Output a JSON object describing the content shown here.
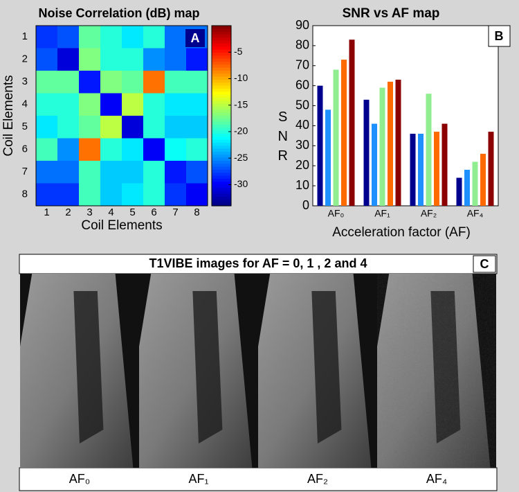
{
  "chart_data": [
    {
      "type": "heatmap",
      "title": "Noise Correlation (dB) map",
      "panel": "A",
      "xlabel": "Coil Elements",
      "ylabel": "Coil Elements",
      "xcategories": [
        1,
        2,
        3,
        4,
        5,
        6,
        7,
        8
      ],
      "ycategories": [
        1,
        2,
        3,
        4,
        5,
        6,
        7,
        8
      ],
      "z": [
        [
          -28,
          -27,
          -18,
          -20,
          -22,
          -20,
          -26,
          -26
        ],
        [
          -27,
          -31,
          -17,
          -20,
          -20,
          -25,
          -26,
          -29
        ],
        [
          -18,
          -18,
          -29,
          -17,
          -18,
          -8,
          -19,
          -19
        ],
        [
          -20,
          -20,
          -17,
          -30,
          -15,
          -20,
          -22,
          -22
        ],
        [
          -22,
          -20,
          -18,
          -15,
          -31,
          -20,
          -23,
          -23
        ],
        [
          -19,
          -25,
          -8,
          -20,
          -22,
          -30,
          -21,
          -20
        ],
        [
          -26,
          -26,
          -19,
          -23,
          -23,
          -20,
          -29,
          -27
        ],
        [
          -28,
          -28,
          -19,
          -23,
          -22,
          -20,
          -28,
          -30
        ]
      ],
      "zlim": [
        -34,
        0
      ],
      "colorbar_ticks": [
        -5,
        -10,
        -15,
        -20,
        -25,
        -30
      ],
      "colormap": "jet"
    },
    {
      "type": "bar",
      "title": "SNR vs AF map",
      "panel": "B",
      "xlabel": "Acceleration factor (AF)",
      "ylabel": "SNR",
      "categories": [
        "AF₀",
        "AF₁",
        "AF₂",
        "AF₄"
      ],
      "series": [
        {
          "color": "#00008f",
          "values": [
            60,
            53,
            36,
            14
          ]
        },
        {
          "color": "#1e90ff",
          "values": [
            48,
            41,
            36,
            18
          ]
        },
        {
          "color": "#90ee90",
          "values": [
            68,
            59,
            56,
            22
          ]
        },
        {
          "color": "#ff6a00",
          "values": [
            73,
            62,
            37,
            26
          ]
        },
        {
          "color": "#8b0000",
          "values": [
            83,
            63,
            41,
            37
          ]
        }
      ],
      "ylim": [
        0,
        90
      ],
      "yticks": [
        0,
        10,
        20,
        30,
        40,
        50,
        60,
        70,
        80,
        90
      ]
    }
  ],
  "images": {
    "title": "T1VIBE images for  AF = 0, 1 , 2 and 4",
    "panel": "C",
    "labels": [
      "AF₀",
      "AF₁",
      "AF₂",
      "AF₄"
    ]
  }
}
